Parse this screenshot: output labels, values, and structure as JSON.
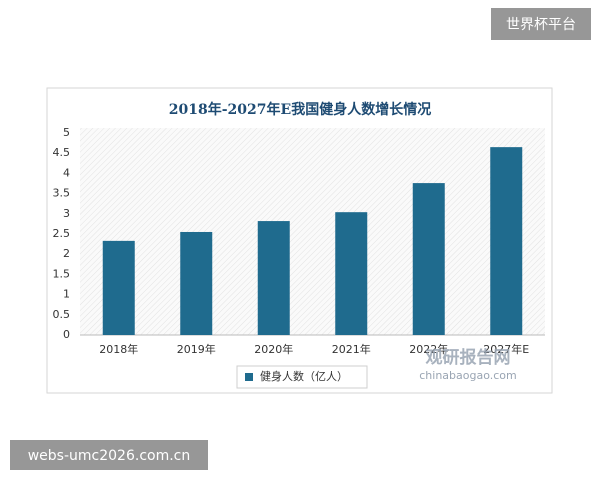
{
  "chart_data": {
    "type": "bar",
    "title": "2018年-2027年E我国健身人数增长情况",
    "categories": [
      "2018年",
      "2019年",
      "2020年",
      "2021年",
      "2022年",
      "2027年E"
    ],
    "series": [
      {
        "name": "健身人数（亿人）",
        "color": "#1f6b8e",
        "values": [
          2.33,
          2.55,
          2.82,
          3.04,
          3.76,
          4.65
        ]
      }
    ],
    "ylim": [
      0,
      5
    ],
    "yticks": [
      0,
      0.5,
      1,
      1.5,
      2,
      2.5,
      3,
      3.5,
      4,
      4.5,
      5
    ]
  },
  "watermarks": {
    "top_right": "世界杯平台",
    "bottom_left": "webs-umc2026.com.cn",
    "logo_name": "观研报告网",
    "logo_url": "chinabaogao.com"
  }
}
